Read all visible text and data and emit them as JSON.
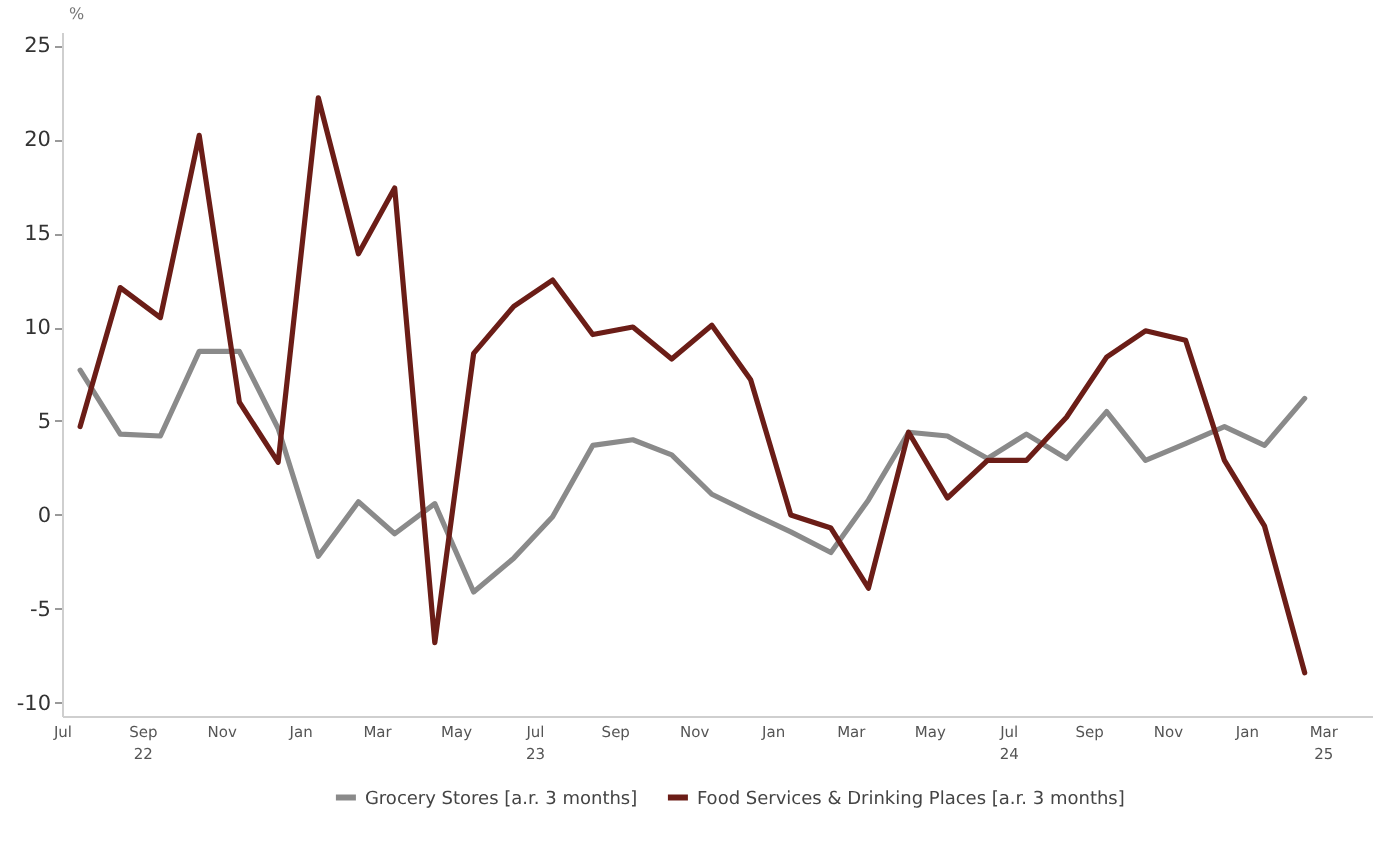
{
  "chart_data": {
    "type": "line",
    "ylabel": "%",
    "x": [
      "2022-07-15",
      "2022-08-15",
      "2022-09-15",
      "2022-10-15",
      "2022-11-15",
      "2022-12-15",
      "2023-01-15",
      "2023-02-15",
      "2023-03-15",
      "2023-04-15",
      "2023-05-15",
      "2023-06-15",
      "2023-07-15",
      "2023-08-15",
      "2023-09-15",
      "2023-10-15",
      "2023-11-15",
      "2023-12-15",
      "2024-01-15",
      "2024-02-15",
      "2024-03-15",
      "2024-04-15",
      "2024-05-15",
      "2024-06-15",
      "2024-07-15",
      "2024-08-15",
      "2024-09-15",
      "2024-10-15",
      "2024-11-15",
      "2024-12-15",
      "2025-01-15",
      "2025-02-15"
    ],
    "series": [
      {
        "name": "Grocery Stores [a.r. 3 months]",
        "color": "#8a8a8a",
        "values": [
          7.7,
          4.3,
          4.2,
          8.7,
          8.7,
          4.6,
          -2.2,
          0.7,
          -1.0,
          0.6,
          -4.1,
          -2.3,
          -0.1,
          3.7,
          4.0,
          3.2,
          1.1,
          0.1,
          -0.9,
          -2.0,
          0.8,
          4.4,
          4.2,
          3.0,
          4.3,
          3.0,
          5.5,
          2.9,
          3.8,
          4.7,
          3.7,
          6.2
        ]
      },
      {
        "name": "Food Services & Drinking Places [a.r. 3 months]",
        "color": "#6b1d17",
        "values": [
          4.7,
          12.1,
          10.5,
          20.2,
          6.0,
          2.8,
          22.2,
          13.9,
          17.4,
          -6.8,
          8.6,
          11.1,
          12.5,
          9.6,
          10.0,
          8.3,
          10.1,
          7.2,
          0.0,
          -0.7,
          -3.9,
          4.4,
          0.9,
          2.9,
          2.9,
          5.2,
          8.4,
          9.8,
          9.3,
          2.9,
          -0.6,
          -8.4
        ]
      }
    ],
    "xlim": [
      "2022-07-01",
      "2025-04-08"
    ],
    "xticks": [
      {
        "value": "2022-07-01",
        "label": "Jul"
      },
      {
        "value": "2022-09-01",
        "label": "Sep\n22"
      },
      {
        "value": "2022-11-01",
        "label": "Nov"
      },
      {
        "value": "2023-01-01",
        "label": "Jan"
      },
      {
        "value": "2023-03-01",
        "label": "Mar"
      },
      {
        "value": "2023-05-01",
        "label": "May"
      },
      {
        "value": "2023-07-01",
        "label": "Jul\n23"
      },
      {
        "value": "2023-09-01",
        "label": "Sep"
      },
      {
        "value": "2023-11-01",
        "label": "Nov"
      },
      {
        "value": "2024-01-01",
        "label": "Jan"
      },
      {
        "value": "2024-03-01",
        "label": "Mar"
      },
      {
        "value": "2024-05-01",
        "label": "May"
      },
      {
        "value": "2024-07-01",
        "label": "Jul\n24"
      },
      {
        "value": "2024-09-01",
        "label": "Sep"
      },
      {
        "value": "2024-11-01",
        "label": "Nov"
      },
      {
        "value": "2025-01-01",
        "label": "Jan"
      },
      {
        "value": "2025-03-01",
        "label": "Mar\n25"
      }
    ],
    "ylim": [
      -10.7,
      25.7
    ],
    "yticks": [
      -10,
      -5,
      0,
      5,
      10,
      15,
      20,
      25
    ],
    "legend": "bottom",
    "line_style": "solid"
  }
}
